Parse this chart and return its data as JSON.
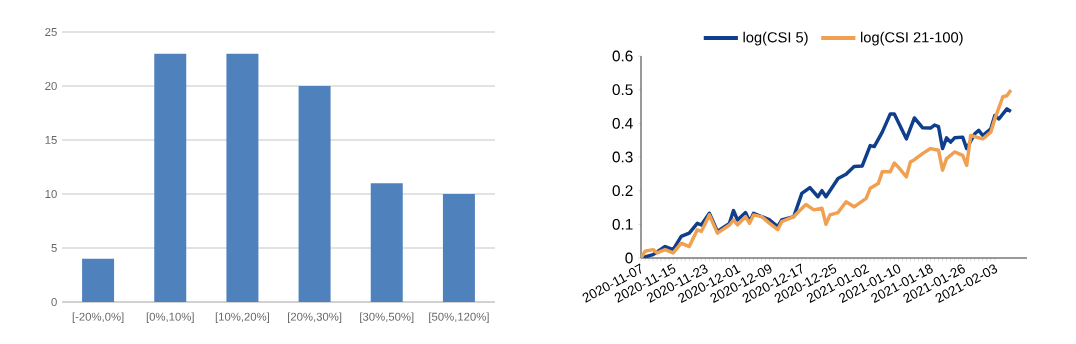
{
  "chart_data": [
    {
      "type": "bar",
      "categories": [
        "[-20%,0%]",
        "[0%,10%]",
        "[10%,20%]",
        "[20%,30%]",
        "[30%,50%]",
        "[50%,120%]"
      ],
      "values": [
        4,
        23,
        23,
        20,
        11,
        10
      ],
      "color": "#4f81bd",
      "ylim": [
        0,
        25
      ],
      "yticks": [
        0,
        5,
        10,
        15,
        20,
        25
      ],
      "grid": "y"
    },
    {
      "type": "line",
      "legend": "top",
      "xlim": [
        "2020-11-07",
        "2021-02-11"
      ],
      "ylim": [
        0,
        0.6
      ],
      "yticks": [
        0,
        0.1,
        0.2,
        0.3,
        0.4,
        0.5,
        0.6
      ],
      "xticks": [
        "2020-11-07",
        "2020-11-15",
        "2020-11-23",
        "2020-12-01",
        "2020-12-09",
        "2020-12-17",
        "2020-12-25",
        "2021-01-02",
        "2021-01-10",
        "2021-01-18",
        "2021-01-26",
        "2021-02-03"
      ],
      "series": [
        {
          "name": "log(CSI 5)",
          "color": "#0f3f8c",
          "x": [
            "2020-11-07",
            "2020-11-10",
            "2020-11-13",
            "2020-11-15",
            "2020-11-17",
            "2020-11-19",
            "2020-11-21",
            "2020-11-22",
            "2020-11-24",
            "2020-11-26",
            "2020-11-29",
            "2020-11-30",
            "2020-12-01",
            "2020-12-03",
            "2020-12-04",
            "2020-12-05",
            "2020-12-07",
            "2020-12-09",
            "2020-12-11",
            "2020-12-12",
            "2020-12-15",
            "2020-12-17",
            "2020-12-19",
            "2020-12-21",
            "2020-12-22",
            "2020-12-23",
            "2020-12-26",
            "2020-12-28",
            "2020-12-30",
            "2021-01-01",
            "2021-01-03",
            "2021-01-04",
            "2021-01-06",
            "2021-01-08",
            "2021-01-09",
            "2021-01-12",
            "2021-01-14",
            "2021-01-16",
            "2021-01-18",
            "2021-01-19",
            "2021-01-20",
            "2021-01-21",
            "2021-01-22",
            "2021-01-23",
            "2021-01-24",
            "2021-01-26",
            "2021-01-27",
            "2021-01-29",
            "2021-01-30",
            "2021-01-31",
            "2021-02-02",
            "2021-02-03",
            "2021-02-04",
            "2021-02-06",
            "2021-02-07"
          ],
          "values": [
            0,
            0.01,
            0.034,
            0.025,
            0.064,
            0.074,
            0.103,
            0.098,
            0.133,
            0.079,
            0.103,
            0.141,
            0.113,
            0.135,
            0.108,
            0.133,
            0.123,
            0.113,
            0.093,
            0.113,
            0.123,
            0.192,
            0.209,
            0.182,
            0.2,
            0.182,
            0.236,
            0.249,
            0.272,
            0.273,
            0.334,
            0.331,
            0.374,
            0.428,
            0.428,
            0.354,
            0.416,
            0.387,
            0.386,
            0.395,
            0.39,
            0.325,
            0.357,
            0.344,
            0.357,
            0.359,
            0.325,
            0.369,
            0.379,
            0.364,
            0.384,
            0.423,
            0.413,
            0.443,
            0.435
          ]
        },
        {
          "name": "log(CSI 21-100)",
          "color": "#f0a050",
          "x": [
            "2020-11-07",
            "2020-11-08",
            "2020-11-10",
            "2020-11-11",
            "2020-11-13",
            "2020-11-15",
            "2020-11-17",
            "2020-11-19",
            "2020-11-21",
            "2020-11-22",
            "2020-11-24",
            "2020-11-26",
            "2020-11-29",
            "2020-11-30",
            "2020-12-01",
            "2020-12-03",
            "2020-12-04",
            "2020-12-05",
            "2020-12-07",
            "2020-12-09",
            "2020-12-11",
            "2020-12-12",
            "2020-12-15",
            "2020-12-18",
            "2020-12-20",
            "2020-12-22",
            "2020-12-23",
            "2020-12-24",
            "2020-12-26",
            "2020-12-28",
            "2020-12-30",
            "2021-01-02",
            "2021-01-03",
            "2021-01-05",
            "2021-01-06",
            "2021-01-08",
            "2021-01-09",
            "2021-01-10",
            "2021-01-12",
            "2021-01-13",
            "2021-01-14",
            "2021-01-16",
            "2021-01-18",
            "2021-01-20",
            "2021-01-21",
            "2021-01-22",
            "2021-01-24",
            "2021-01-26",
            "2021-01-27",
            "2021-01-28",
            "2021-01-31",
            "2021-02-02",
            "2021-02-03",
            "2021-02-05",
            "2021-02-06",
            "2021-02-07"
          ],
          "values": [
            0,
            0.02,
            0.025,
            0.015,
            0.025,
            0.015,
            0.044,
            0.034,
            0.084,
            0.079,
            0.128,
            0.074,
            0.098,
            0.113,
            0.098,
            0.123,
            0.103,
            0.128,
            0.123,
            0.103,
            0.084,
            0.108,
            0.123,
            0.159,
            0.143,
            0.148,
            0.1,
            0.128,
            0.135,
            0.167,
            0.152,
            0.177,
            0.207,
            0.221,
            0.256,
            0.256,
            0.282,
            0.27,
            0.241,
            0.285,
            0.292,
            0.31,
            0.325,
            0.32,
            0.261,
            0.295,
            0.315,
            0.305,
            0.275,
            0.364,
            0.354,
            0.374,
            0.413,
            0.479,
            0.482,
            0.499
          ]
        }
      ]
    }
  ]
}
